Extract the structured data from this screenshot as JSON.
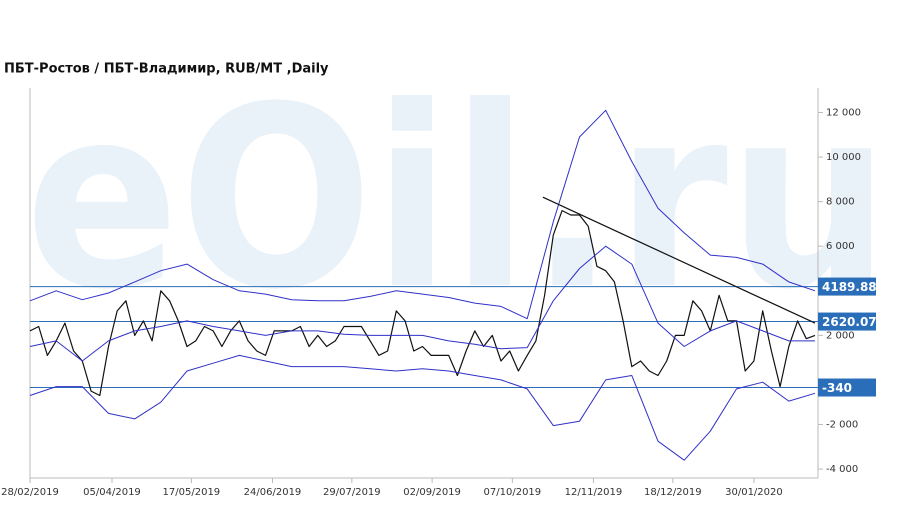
{
  "chart_data": {
    "type": "line",
    "title": "ПБТ-Ростов / ПБТ-Владимир,  RUB/MT ,Daily",
    "watermark": "eOil.ru",
    "xlim": [
      0,
      90
    ],
    "xticks": [
      {
        "value": 0,
        "label": "28/02/2019"
      },
      {
        "value": 9.4,
        "label": "05/04/2019"
      },
      {
        "value": 18.5,
        "label": "17/05/2019"
      },
      {
        "value": 27.8,
        "label": "24/06/2019"
      },
      {
        "value": 36.9,
        "label": "29/07/2019"
      },
      {
        "value": 46.1,
        "label": "02/09/2019"
      },
      {
        "value": 55.3,
        "label": "07/10/2019"
      },
      {
        "value": 64.6,
        "label": "12/11/2019"
      },
      {
        "value": 73.7,
        "label": "18/12/2019"
      },
      {
        "value": 83.0,
        "label": "30/01/2020"
      }
    ],
    "ylim": [
      -4400,
      13100
    ],
    "yticks": [
      {
        "value": -4000,
        "label": "-4 000"
      },
      {
        "value": -2000,
        "label": "-2 000"
      },
      {
        "value": 2000,
        "label": "2 000"
      },
      {
        "value": 6000,
        "label": "6 000"
      },
      {
        "value": 8000,
        "label": "8 000"
      },
      {
        "value": 10000,
        "label": "10 000"
      },
      {
        "value": 12000,
        "label": "12 000"
      }
    ],
    "series": [
      {
        "color": "#111111",
        "values": [
          2200,
          2400,
          1100,
          1750,
          2550,
          1300,
          850,
          -500,
          -700,
          1500,
          3100,
          3550,
          2000,
          2650,
          1750,
          4000,
          3550,
          2650,
          1500,
          1750,
          2400,
          2200,
          1500,
          2200,
          2650,
          1750,
          1300,
          1100,
          2200,
          2200,
          2200,
          2400,
          1500,
          2000,
          1500,
          1750,
          2400,
          2400,
          2400,
          1750,
          1100,
          1300,
          3100,
          2650,
          1300,
          1500,
          1100,
          1100,
          1100,
          200,
          1300,
          2200,
          1500,
          2000,
          850,
          1300,
          400,
          1100,
          1750,
          3800,
          6500,
          7600,
          7400,
          7400,
          6900,
          5100,
          4900,
          4400,
          2650,
          600,
          850,
          400,
          200,
          850,
          2000,
          2000,
          3550,
          3100,
          2200,
          3800,
          2650,
          2650,
          400,
          850,
          3100,
          1300,
          -300,
          1500,
          2650,
          1850,
          2000
        ]
      },
      {
        "color": "#3030c8",
        "x": [
          0,
          3,
          6,
          9,
          12,
          15,
          18,
          21,
          24,
          27,
          30,
          33,
          36,
          39,
          42,
          45,
          48,
          51,
          54,
          57,
          60,
          63,
          66,
          69,
          72,
          75,
          78,
          81,
          84,
          87,
          90
        ],
        "values": [
          3550,
          4000,
          3600,
          3900,
          4400,
          4900,
          5200,
          4500,
          4000,
          3850,
          3600,
          3550,
          3550,
          3750,
          4000,
          3850,
          3700,
          3450,
          3300,
          2750,
          7100,
          10900,
          12100,
          9800,
          7700,
          6600,
          5600,
          5500,
          5200,
          4400,
          4000
        ]
      },
      {
        "color": "#3030c8",
        "x": [
          0,
          3,
          6,
          9,
          12,
          15,
          18,
          21,
          24,
          27,
          30,
          33,
          36,
          39,
          42,
          45,
          48,
          51,
          54,
          57,
          60,
          63,
          66,
          69,
          72,
          75,
          78,
          81,
          84,
          87,
          90
        ],
        "values": [
          1500,
          1750,
          850,
          1750,
          2200,
          2400,
          2650,
          2400,
          2200,
          2000,
          2200,
          2200,
          2050,
          2000,
          2000,
          2000,
          1750,
          1600,
          1400,
          1450,
          3550,
          5000,
          6000,
          5200,
          2550,
          1500,
          2200,
          2650,
          2200,
          1750,
          1750
        ]
      },
      {
        "color": "#3030c8",
        "x": [
          0,
          3,
          6,
          9,
          12,
          15,
          18,
          21,
          24,
          27,
          30,
          33,
          36,
          39,
          42,
          45,
          48,
          51,
          54,
          57,
          60,
          63,
          66,
          69,
          72,
          75,
          78,
          81,
          84,
          87,
          90
        ],
        "values": [
          -700,
          -300,
          -300,
          -1500,
          -1750,
          -1000,
          400,
          750,
          1100,
          850,
          600,
          600,
          600,
          500,
          400,
          500,
          400,
          200,
          0,
          -400,
          -2050,
          -1850,
          0,
          200,
          -2750,
          -3600,
          -2300,
          -400,
          -100,
          -950,
          -600
        ]
      }
    ],
    "trendline": {
      "color": "#111111",
      "x": [
        58.8,
        90
      ],
      "values": [
        8200,
        2550
      ]
    },
    "levels": [
      4189.88,
      2620.07,
      -340
    ],
    "level_color": "#2a6db8"
  }
}
